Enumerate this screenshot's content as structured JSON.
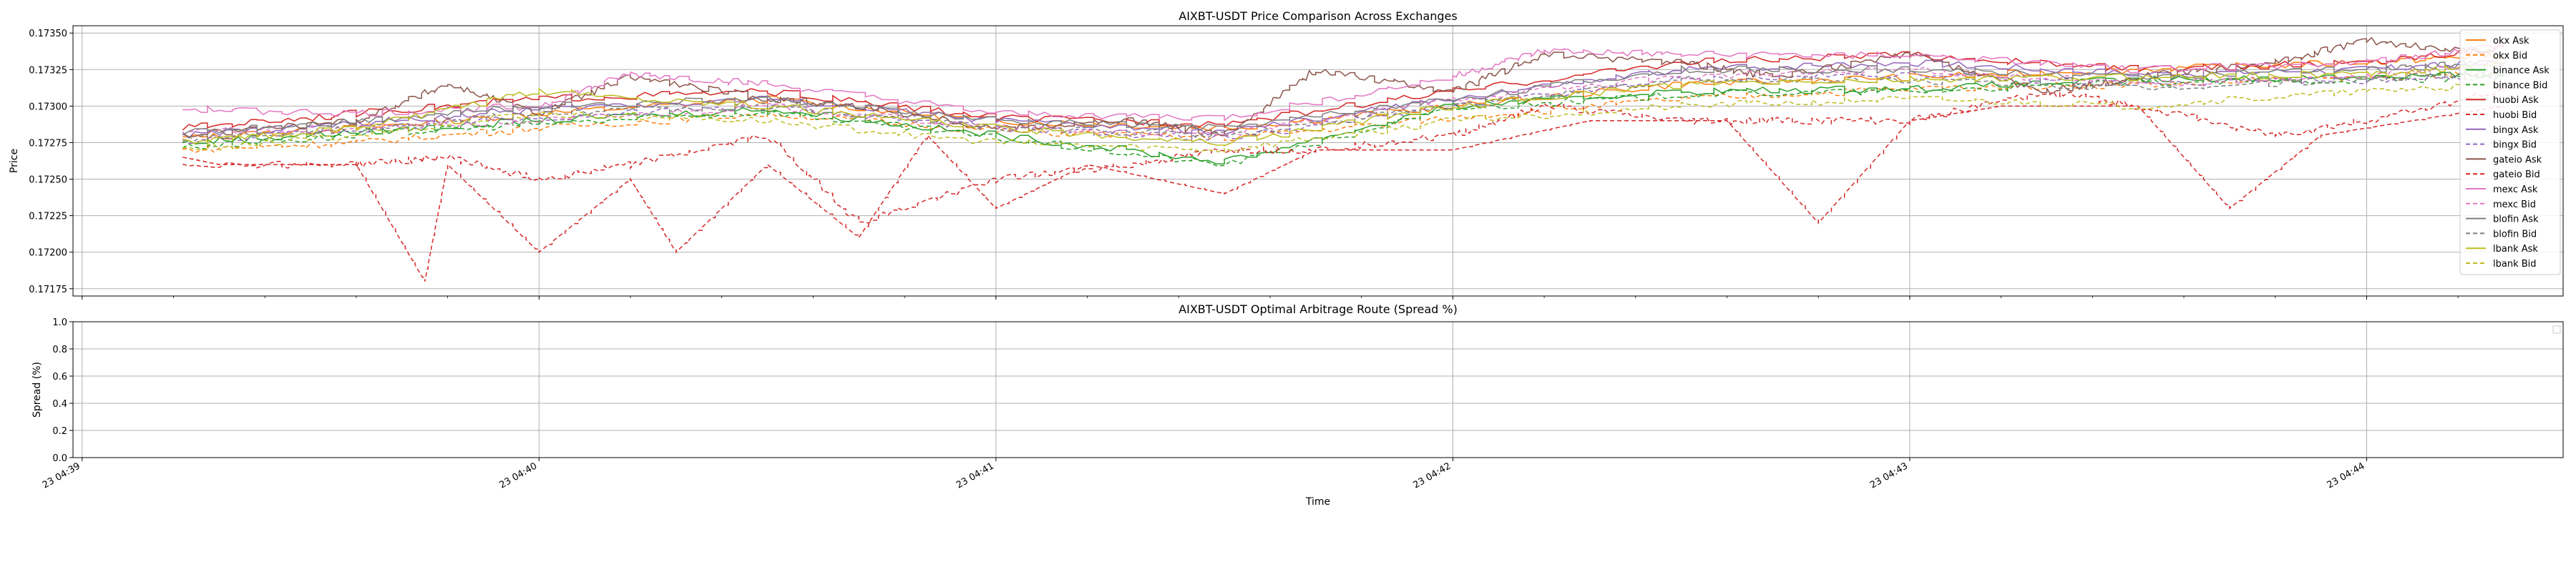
{
  "chart_data": [
    {
      "type": "line",
      "title": "AIXBT-USDT Price Comparison Across Exchanges",
      "xlabel": "",
      "ylabel": "Price",
      "ylim": [
        0.1717,
        0.17355
      ],
      "xlim_minutes": [
        -0.02,
        5.43
      ],
      "x_ticks": [
        "23 04:39",
        "23 04:40",
        "23 04:41",
        "23 04:42",
        "23 04:43",
        "23 04:44"
      ],
      "y_ticks": [
        "0.17175",
        "0.17200",
        "0.17225",
        "0.17250",
        "0.17275",
        "0.17300",
        "0.17325",
        "0.17350"
      ],
      "grid": true,
      "legend_position": "right",
      "series": [
        {
          "name": "okx Ask",
          "color": "#ff7f0e",
          "dash": "solid",
          "x": [
            0.22,
            0.6,
            1.0,
            1.5,
            2.0,
            2.5,
            3.0,
            3.5,
            4.0,
            4.5,
            5.0,
            5.3
          ],
          "y": [
            0.17278,
            0.17285,
            0.17295,
            0.17305,
            0.1729,
            0.17285,
            0.173,
            0.17315,
            0.1732,
            0.17325,
            0.1733,
            0.17335
          ]
        },
        {
          "name": "okx Bid",
          "color": "#ff7f0e",
          "dash": "dashed",
          "x": [
            0.22,
            0.6,
            1.0,
            1.5,
            2.0,
            2.5,
            3.0,
            3.5,
            4.0,
            4.5,
            5.0,
            5.3
          ],
          "y": [
            0.1727,
            0.17275,
            0.17285,
            0.17295,
            0.17283,
            0.17278,
            0.17292,
            0.17305,
            0.17312,
            0.17315,
            0.1732,
            0.17322
          ]
        },
        {
          "name": "binance Ask",
          "color": "#2ca02c",
          "dash": "solid",
          "x": [
            0.22,
            0.6,
            1.0,
            1.5,
            2.0,
            2.5,
            3.0,
            3.5,
            4.0,
            4.5,
            5.0,
            5.3
          ],
          "y": [
            0.17275,
            0.17282,
            0.1729,
            0.17298,
            0.1728,
            0.17262,
            0.173,
            0.1731,
            0.17312,
            0.17318,
            0.1732,
            0.17322
          ]
        },
        {
          "name": "binance Bid",
          "color": "#2ca02c",
          "dash": "dashed",
          "x": [
            0.22,
            0.6,
            1.0,
            1.5,
            2.0,
            2.5,
            3.0,
            3.5,
            4.0,
            4.5,
            5.0,
            5.3
          ],
          "y": [
            0.17272,
            0.1728,
            0.17288,
            0.17296,
            0.17278,
            0.1726,
            0.17298,
            0.17308,
            0.1731,
            0.17316,
            0.17318,
            0.1732
          ]
        },
        {
          "name": "huobi Ask",
          "color": "#d62728",
          "dash": "solid",
          "x": [
            0.22,
            0.6,
            1.0,
            1.5,
            2.0,
            2.5,
            3.0,
            3.5,
            4.0,
            4.5,
            5.0,
            5.3
          ],
          "y": [
            0.17285,
            0.17295,
            0.17305,
            0.1731,
            0.17292,
            0.17288,
            0.1731,
            0.1733,
            0.17335,
            0.17325,
            0.1733,
            0.1734
          ]
        },
        {
          "name": "huobi Bid",
          "color": "#d62728",
          "dash": "dashed",
          "x": [
            0.22,
            0.3,
            0.6,
            0.75,
            0.8,
            1.0,
            1.2,
            1.3,
            1.5,
            1.7,
            1.85,
            2.0,
            2.2,
            2.5,
            2.7,
            2.9,
            3.0,
            3.3,
            3.6,
            3.8,
            4.0,
            4.2,
            4.5,
            4.7,
            4.9,
            5.3
          ],
          "y": [
            0.17265,
            0.1726,
            0.1726,
            0.1718,
            0.1726,
            0.172,
            0.1725,
            0.172,
            0.1726,
            0.1721,
            0.1728,
            0.1723,
            0.1726,
            0.1724,
            0.1727,
            0.1727,
            0.1727,
            0.1729,
            0.1729,
            0.1722,
            0.1729,
            0.173,
            0.173,
            0.1723,
            0.1728,
            0.173
          ]
        },
        {
          "name": "bingx Ask",
          "color": "#9467bd",
          "dash": "solid",
          "x": [
            0.22,
            0.6,
            1.0,
            1.5,
            2.0,
            2.5,
            3.0,
            3.5,
            4.0,
            4.5,
            5.0,
            5.3
          ],
          "y": [
            0.1728,
            0.17288,
            0.17298,
            0.17305,
            0.1729,
            0.17282,
            0.17305,
            0.17325,
            0.1733,
            0.17322,
            0.17325,
            0.1733
          ]
        },
        {
          "name": "bingx Bid",
          "color": "#9467bd",
          "dash": "dashed",
          "x": [
            0.22,
            0.6,
            1.0,
            1.5,
            2.0,
            2.5,
            3.0,
            3.5,
            4.0,
            4.5,
            5.0,
            5.3
          ],
          "y": [
            0.17276,
            0.17284,
            0.17292,
            0.173,
            0.17285,
            0.17278,
            0.173,
            0.17318,
            0.17322,
            0.17315,
            0.17318,
            0.17322
          ]
        },
        {
          "name": "gateio Ask",
          "color": "#8c564b",
          "dash": "solid",
          "x": [
            0.22,
            0.6,
            0.8,
            1.0,
            1.2,
            1.5,
            1.7,
            2.0,
            2.3,
            2.5,
            2.7,
            3.0,
            3.2,
            3.5,
            3.7,
            4.0,
            4.3,
            4.5,
            4.8,
            5.0,
            5.3
          ],
          "y": [
            0.1728,
            0.1729,
            0.17315,
            0.17295,
            0.1732,
            0.17305,
            0.173,
            0.17285,
            0.1729,
            0.1728,
            0.17325,
            0.1731,
            0.17335,
            0.1733,
            0.1732,
            0.17335,
            0.1731,
            0.1732,
            0.1733,
            0.17345,
            0.17335
          ]
        },
        {
          "name": "gateio Bid",
          "color": "#d62728",
          "dash": "dashed",
          "x": [
            0.22,
            0.6,
            0.8,
            1.0,
            1.2,
            1.5,
            1.7,
            2.0,
            2.3,
            2.5,
            2.7,
            3.0,
            3.2,
            3.5,
            3.7,
            4.0,
            4.3,
            4.5,
            4.8,
            5.0,
            5.3
          ],
          "y": [
            0.1726,
            0.1726,
            0.17265,
            0.1725,
            0.1726,
            0.1728,
            0.1722,
            0.1725,
            0.1726,
            0.1727,
            0.1727,
            0.1728,
            0.173,
            0.1729,
            0.1729,
            0.1729,
            0.1731,
            0.173,
            0.1728,
            0.1729,
            0.1731
          ]
        },
        {
          "name": "mexc Ask",
          "color": "#e377c2",
          "dash": "solid",
          "x": [
            0.22,
            0.6,
            1.0,
            1.2,
            1.5,
            2.0,
            2.5,
            3.0,
            3.2,
            3.5,
            4.0,
            4.5,
            5.0,
            5.3
          ],
          "y": [
            0.17298,
            0.17295,
            0.173,
            0.17322,
            0.17315,
            0.17295,
            0.17292,
            0.1732,
            0.17338,
            0.17335,
            0.17335,
            0.17325,
            0.1733,
            0.17342
          ]
        },
        {
          "name": "mexc Bid",
          "color": "#e377c2",
          "dash": "dashed",
          "x": [
            0.22,
            0.6,
            1.0,
            1.5,
            2.0,
            2.5,
            3.0,
            3.5,
            4.0,
            4.5,
            5.0,
            5.3
          ],
          "y": [
            0.17282,
            0.17285,
            0.1729,
            0.173,
            0.17285,
            0.1728,
            0.17305,
            0.1732,
            0.17325,
            0.17315,
            0.1732,
            0.1733
          ]
        },
        {
          "name": "blofin Ask",
          "color": "#7f7f7f",
          "dash": "solid",
          "x": [
            0.22,
            0.6,
            1.0,
            1.5,
            2.0,
            2.5,
            3.0,
            3.5,
            4.0,
            4.5,
            5.0,
            5.3
          ],
          "y": [
            0.17282,
            0.1729,
            0.173,
            0.17305,
            0.1729,
            0.17285,
            0.17305,
            0.17325,
            0.17325,
            0.1732,
            0.17325,
            0.1733
          ]
        },
        {
          "name": "blofin Bid",
          "color": "#7f7f7f",
          "dash": "dashed",
          "x": [
            0.22,
            0.6,
            1.0,
            1.5,
            2.0,
            2.5,
            3.0,
            3.5,
            4.0,
            4.5,
            5.0,
            5.3
          ],
          "y": [
            0.17278,
            0.17285,
            0.17295,
            0.173,
            0.17285,
            0.1728,
            0.173,
            0.17318,
            0.17318,
            0.17312,
            0.17318,
            0.17324
          ]
        },
        {
          "name": "lbank Ask",
          "color": "#bcbd22",
          "dash": "solid",
          "x": [
            0.22,
            0.6,
            1.0,
            1.5,
            2.0,
            2.5,
            3.0,
            3.5,
            4.0,
            4.5,
            5.0,
            5.3
          ],
          "y": [
            0.17275,
            0.17285,
            0.1731,
            0.173,
            0.17285,
            0.17275,
            0.173,
            0.17315,
            0.17318,
            0.1732,
            0.17322,
            0.17328
          ]
        },
        {
          "name": "lbank Bid",
          "color": "#bcbd22",
          "dash": "dashed",
          "x": [
            0.22,
            0.6,
            1.0,
            1.5,
            2.0,
            2.5,
            3.0,
            3.5,
            4.0,
            4.5,
            5.0,
            5.3
          ],
          "y": [
            0.1727,
            0.1728,
            0.17295,
            0.1729,
            0.17275,
            0.1727,
            0.1729,
            0.173,
            0.17305,
            0.173,
            0.1731,
            0.17315
          ]
        }
      ]
    },
    {
      "type": "line",
      "title": "AIXBT-USDT Optimal Arbitrage Route (Spread %)",
      "xlabel": "Time",
      "ylabel": "Spread (%)",
      "ylim": [
        0.0,
        1.0
      ],
      "y_ticks": [
        "0.0",
        "0.2",
        "0.4",
        "0.6",
        "0.8",
        "1.0"
      ],
      "x_ticks": [
        "23 04:39",
        "23 04:40",
        "23 04:41",
        "23 04:42",
        "23 04:43",
        "23 04:44"
      ],
      "grid": true,
      "legend_position": "top-right",
      "series": []
    }
  ]
}
